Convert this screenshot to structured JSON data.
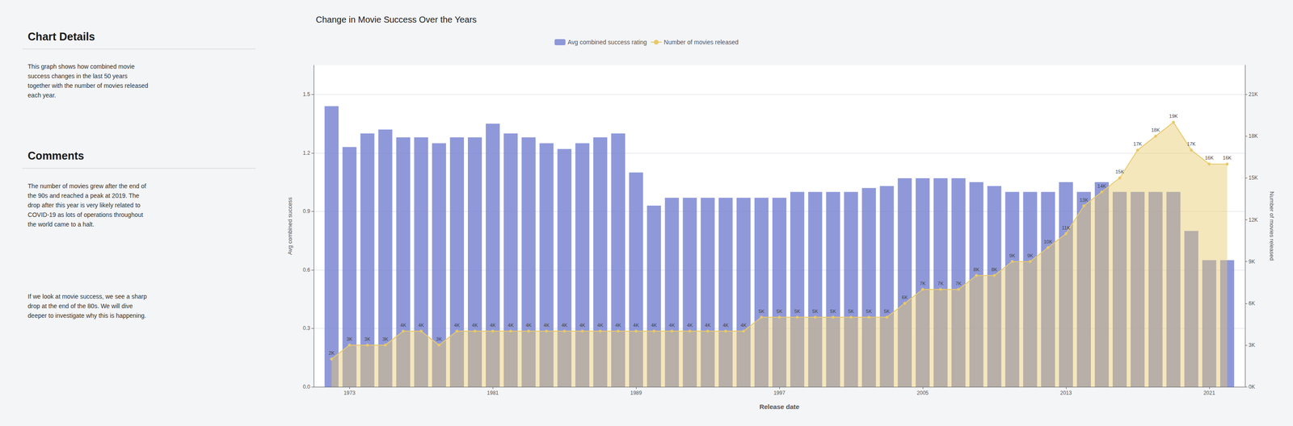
{
  "chart_data": {
    "type": "bar",
    "title": "Change in Movie Success Over the Years",
    "annotations": [
      "Chart Details",
      "This graph shows how combined movie\nsuccess changes in the last 50 years\ntogether with the number of movies released\neach year.",
      "Comments",
      "The number of movies grew after the end of\nthe 90s and reached a peak at 2019. The\ndrop after this year is very likely related to\nCOVID-19 as lots of operations throughout\nthe world came to a halt.",
      "If we look at movie success, we see a sharp\ndrop at the end of the 80s. We will dive\ndeeper to investigate why this is happening."
    ],
    "xlabel": "Release date",
    "ylabel": "Avg combined success",
    "y2label": "Number of movies released",
    "x": [
      1972,
      1973,
      1974,
      1975,
      1976,
      1977,
      1978,
      1979,
      1980,
      1981,
      1982,
      1983,
      1984,
      1985,
      1986,
      1987,
      1988,
      1989,
      1990,
      1991,
      1992,
      1993,
      1994,
      1995,
      1996,
      1997,
      1998,
      1999,
      2000,
      2001,
      2002,
      2003,
      2004,
      2005,
      2006,
      2007,
      2008,
      2009,
      2010,
      2011,
      2012,
      2013,
      2014,
      2015,
      2016,
      2017,
      2018,
      2019,
      2020,
      2021,
      2022
    ],
    "series": [
      {
        "name": "Avg combined success rating",
        "type": "bar",
        "color": "#7b87d4",
        "values": [
          1.44,
          1.23,
          1.3,
          1.32,
          1.28,
          1.28,
          1.25,
          1.28,
          1.28,
          1.35,
          1.3,
          1.28,
          1.25,
          1.22,
          1.25,
          1.28,
          1.3,
          1.1,
          0.93,
          0.97,
          0.97,
          0.97,
          0.97,
          0.97,
          0.97,
          0.97,
          1.0,
          1.0,
          1.0,
          1.0,
          1.02,
          1.03,
          1.07,
          1.07,
          1.07,
          1.07,
          1.05,
          1.03,
          1.0,
          1.0,
          1.0,
          1.05,
          1.0,
          1.05,
          1.0,
          1.0,
          1.0,
          1.0,
          0.8,
          0.65,
          0.65
        ]
      },
      {
        "name": "Number of movies released",
        "type": "line",
        "axis": "y2",
        "color": "#e8c96a",
        "marker": "circle",
        "data_labels": true,
        "values": [
          2000,
          3000,
          3000,
          3000,
          4000,
          4000,
          3000,
          4000,
          4000,
          4000,
          4000,
          4000,
          4000,
          4000,
          4000,
          4000,
          4000,
          4000,
          4000,
          4000,
          4000,
          4000,
          4000,
          4000,
          5000,
          5000,
          5000,
          5000,
          5000,
          5000,
          5000,
          5000,
          6000,
          7000,
          7000,
          7000,
          8000,
          8000,
          9000,
          9000,
          10000,
          11000,
          13000,
          14000,
          15000,
          17000,
          18000,
          19000,
          17000,
          16000,
          16000
        ],
        "value_labels": [
          "2K",
          "3K",
          "3K",
          "3K",
          "4K",
          "4K",
          "3K",
          "4K",
          "4K",
          "4K",
          "4K",
          "4K",
          "4K",
          "4K",
          "4K",
          "4K",
          "4K",
          "4K",
          "4K",
          "4K",
          "4K",
          "4K",
          "4K",
          "4K",
          "5K",
          "5K",
          "5K",
          "5K",
          "5K",
          "5K",
          "5K",
          "5K",
          "6K",
          "7K",
          "7K",
          "7K",
          "8K",
          "8K",
          "9K",
          "9K",
          "10K",
          "11K",
          "13K",
          "14K",
          "15K",
          "17K",
          "18K",
          "19K",
          "17K",
          "16K",
          "16K"
        ]
      }
    ],
    "xlim": [
      1971,
      2023
    ],
    "xticks": [
      1973,
      1981,
      1989,
      1997,
      2005,
      2013,
      2021
    ],
    "ylim": [
      0,
      1.65
    ],
    "yticks": [
      {
        "value": 0,
        "label": "0.0"
      },
      0.3,
      0.6,
      0.9,
      1.2,
      1.5
    ],
    "y2lim": [
      0,
      23100
    ],
    "y2ticks": [
      {
        "value": 0,
        "label": "0K"
      },
      {
        "value": 3000,
        "label": "3K"
      },
      {
        "value": 6000,
        "label": "6K"
      },
      {
        "value": 9000,
        "label": "9K"
      },
      {
        "value": 12000,
        "label": "12K"
      },
      {
        "value": 15000,
        "label": "15K"
      },
      {
        "value": 18000,
        "label": "18K"
      },
      {
        "value": 21000,
        "label": "21K"
      }
    ],
    "grid": true,
    "legend": "top"
  }
}
